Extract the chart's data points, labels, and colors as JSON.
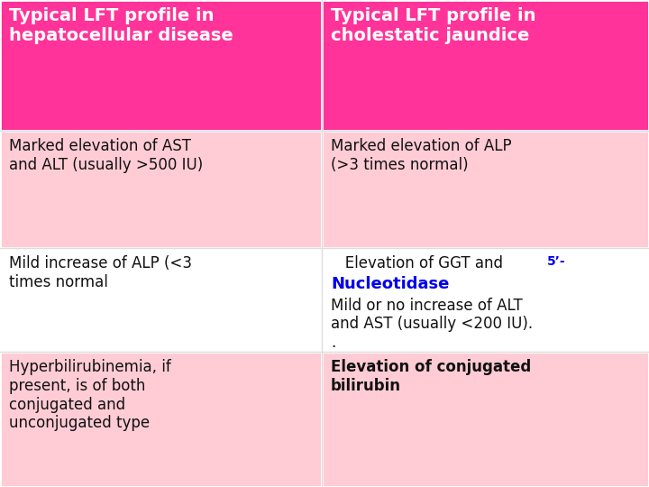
{
  "header_bg": "#FF3399",
  "row1_bg": "#FFCCD5",
  "row2_bg": "#FFFFFF",
  "row3_bg": "#FFCCD5",
  "header_text_color": "#FFFFFF",
  "body_text_color": "#111111",
  "blue_text_color": "#0000EE",
  "border_color": "#FFFFFF",
  "col1_header": "Typical LFT profile in\nhepatocellular disease",
  "col2_header": "Typical LFT profile in\ncholestatic jaundice",
  "row1_col1": "Marked elevation of AST\nand ALT (usually >500 IU)",
  "row1_col2": "Marked elevation of ALP\n(>3 times normal)",
  "row2_col1": "Mild increase of ALP (<3\ntimes normal",
  "row2_col2_part1": "   Elevation of GGT and ",
  "row2_col2_5prime": "5’-",
  "row2_col2_part2": "Nucleotidase",
  "row2_col2_part3": "Mild or no increase of ALT\nand AST (usually <200 IU).\n.",
  "row3_col1": "Hyperbilirubinemia, if\npresent, is of both\nconjugated and\nunconjugated type",
  "row3_col2": "Elevation of conjugated\nbilirubin",
  "header_fontsize": 14,
  "body_fontsize": 12,
  "small_fontsize": 10,
  "col_split": 357,
  "row_splits": [
    0,
    150,
    265,
    395,
    540
  ],
  "fig_width": 7.2,
  "fig_height": 5.4,
  "dpi": 100
}
